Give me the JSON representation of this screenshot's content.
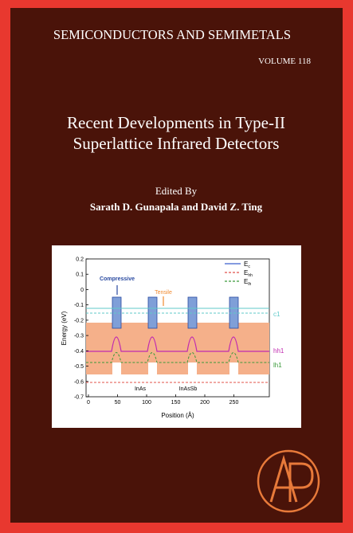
{
  "header": {
    "series": "SEMICONDUCTORS AND SEMIMETALS",
    "volume": "VOLUME 118"
  },
  "title": {
    "lines": [
      "Recent Developments in Type-II",
      "Superlattice Infrared Detectors"
    ]
  },
  "credits": {
    "edited_by": "Edited By",
    "editors": "Sarath D. Gunapala and David Z. Ting"
  },
  "figure": {
    "y_axis_label": "Energy (eV)",
    "x_axis_label": "Position (Å)",
    "yticks": [
      0.2,
      0.1,
      0,
      -0.1,
      -0.2,
      -0.3,
      -0.4,
      -0.5,
      -0.6,
      -0.7
    ],
    "xticks": [
      0,
      50,
      100,
      150,
      200,
      250
    ],
    "legend": [
      {
        "main": "E",
        "sub": "c",
        "color": "#3a5fcd"
      },
      {
        "main": "E",
        "sub": "hh",
        "color": "#e0504a"
      },
      {
        "main": "E",
        "sub": "lh",
        "color": "#3a9a3a"
      }
    ],
    "annotations": {
      "compressive": "Compressive",
      "tensile": "Tensile",
      "inas": "InAs",
      "inassb": "InAsSb"
    },
    "level_labels": {
      "c1": "c1",
      "hh1": "hh1",
      "lh1": "lh1"
    }
  }
}
